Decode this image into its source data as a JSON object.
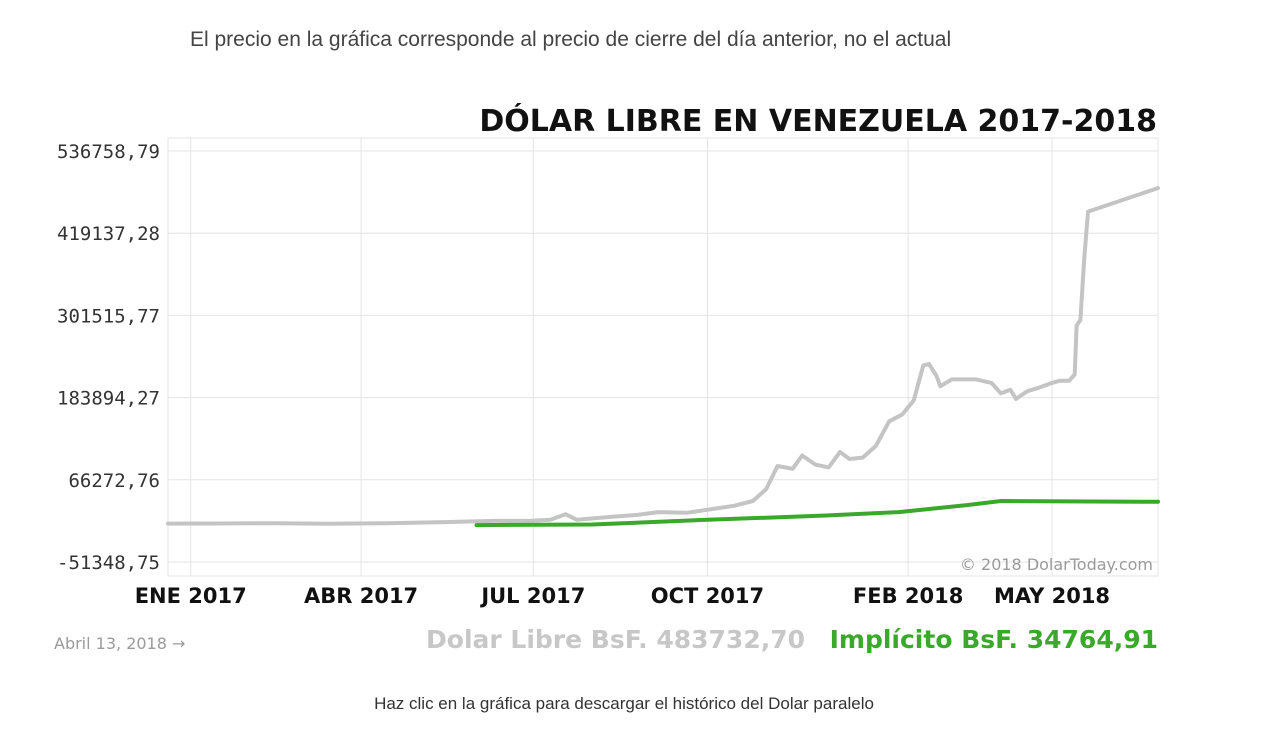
{
  "note": "El precio en la gráfica corresponde al precio de cierre del día anterior, no el actual",
  "caption": "Haz clic en la gráfica para descargar el histórico del Dolar paralelo",
  "chart_data": {
    "type": "line",
    "title": "DÓLAR LIBRE EN VENEZUELA 2017-2018",
    "credit": "© 2018 DolarToday.com",
    "date_label": "Abril 13, 2018 →",
    "libre_label": "Dolar Libre BsF. 483732,70",
    "impl_label": "Implícito BsF. 34764,91",
    "ylim": [
      -51348.75,
      536758.79
    ],
    "y_ticks": [
      {
        "value": 536758.79,
        "label": "536758,79"
      },
      {
        "value": 419137.28,
        "label": "419137,28"
      },
      {
        "value": 301515.77,
        "label": "301515,77"
      },
      {
        "value": 183894.27,
        "label": "183894,27"
      },
      {
        "value": 66272.76,
        "label": "66272,76"
      },
      {
        "value": -51348.75,
        "label": "-51348,75"
      }
    ],
    "xlim": [
      "2016-12-20",
      "2018-05-27"
    ],
    "x_ticks": [
      {
        "date": "2017-01-01",
        "label": "ENE 2017"
      },
      {
        "date": "2017-04-01",
        "label": "ABR 2017"
      },
      {
        "date": "2017-07-01",
        "label": "JUL 2017"
      },
      {
        "date": "2017-10-01",
        "label": "OCT 2017"
      },
      {
        "date": "2018-01-15",
        "label": "FEB 2018"
      },
      {
        "date": "2018-04-01",
        "label": "MAY 2018"
      }
    ],
    "grid": true,
    "series": [
      {
        "name": "Dolar Libre",
        "color": "#c4c4c4",
        "points": [
          [
            "2016-12-20",
            3600
          ],
          [
            "2017-01-15",
            3800
          ],
          [
            "2017-02-15",
            4200
          ],
          [
            "2017-03-15",
            3500
          ],
          [
            "2017-04-15",
            4200
          ],
          [
            "2017-05-15",
            5800
          ],
          [
            "2017-06-10",
            7500
          ],
          [
            "2017-06-30",
            7800
          ],
          [
            "2017-07-10",
            9000
          ],
          [
            "2017-07-18",
            17000
          ],
          [
            "2017-07-24",
            9000
          ],
          [
            "2017-08-10",
            13000
          ],
          [
            "2017-08-25",
            16000
          ],
          [
            "2017-09-05",
            20000
          ],
          [
            "2017-09-20",
            19000
          ],
          [
            "2017-10-05",
            25000
          ],
          [
            "2017-10-15",
            29000
          ],
          [
            "2017-10-25",
            36000
          ],
          [
            "2017-11-01",
            53000
          ],
          [
            "2017-11-07",
            86000
          ],
          [
            "2017-11-15",
            82000
          ],
          [
            "2017-11-20",
            101000
          ],
          [
            "2017-11-27",
            88000
          ],
          [
            "2017-12-04",
            84000
          ],
          [
            "2017-12-10",
            106000
          ],
          [
            "2017-12-15",
            96000
          ],
          [
            "2017-12-22",
            98000
          ],
          [
            "2017-12-29",
            115000
          ],
          [
            "2018-01-05",
            150000
          ],
          [
            "2018-01-12",
            160000
          ],
          [
            "2018-01-18",
            180000
          ],
          [
            "2018-01-23",
            230000
          ],
          [
            "2018-01-26",
            232000
          ],
          [
            "2018-01-30",
            215000
          ],
          [
            "2018-02-01",
            200000
          ],
          [
            "2018-02-07",
            210000
          ],
          [
            "2018-02-20",
            210000
          ],
          [
            "2018-02-28",
            205000
          ],
          [
            "2018-03-05",
            190000
          ],
          [
            "2018-03-10",
            195000
          ],
          [
            "2018-03-13",
            182000
          ],
          [
            "2018-03-19",
            193000
          ],
          [
            "2018-03-25",
            198000
          ],
          [
            "2018-04-01",
            205000
          ],
          [
            "2018-04-05",
            208000
          ],
          [
            "2018-04-10",
            208000
          ],
          [
            "2018-04-13",
            217000
          ],
          [
            "2018-04-14",
            287000
          ],
          [
            "2018-04-16",
            295000
          ],
          [
            "2018-04-18",
            382000
          ],
          [
            "2018-04-20",
            450000
          ],
          [
            "2018-05-27",
            483732.7
          ]
        ]
      },
      {
        "name": "Implícito",
        "color": "#3aa82a",
        "points": [
          [
            "2017-06-01",
            1500
          ],
          [
            "2017-08-01",
            2300
          ],
          [
            "2017-10-01",
            9000
          ],
          [
            "2017-12-01",
            15000
          ],
          [
            "2018-01-10",
            20000
          ],
          [
            "2018-02-15",
            30000
          ],
          [
            "2018-03-05",
            36000
          ],
          [
            "2018-05-27",
            34764.91
          ]
        ]
      }
    ]
  }
}
